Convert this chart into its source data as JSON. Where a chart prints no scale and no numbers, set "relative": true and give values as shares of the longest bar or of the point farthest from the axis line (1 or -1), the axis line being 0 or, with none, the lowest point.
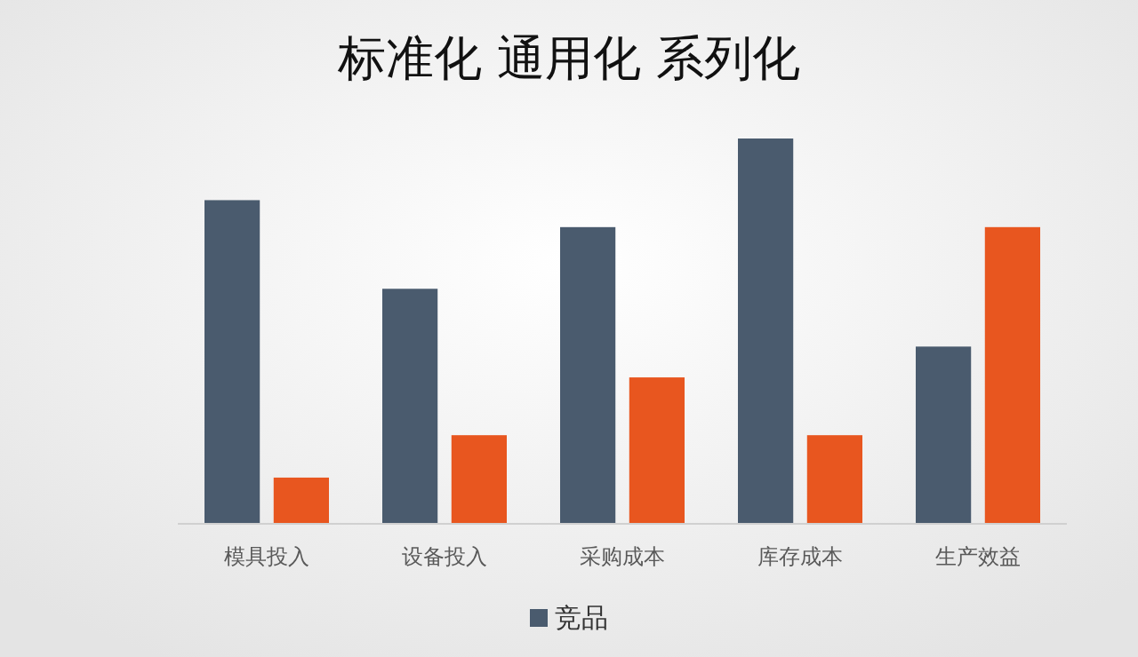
{
  "chart_data": {
    "type": "bar",
    "title": "标准化 通用化 系列化",
    "relative": true,
    "legend": "bottom",
    "categories": [
      "模具投入",
      "设备投入",
      "采购成本",
      "库存成本",
      "生产效益"
    ],
    "series": [
      {
        "name": "竞品",
        "color": "#4a5b6e",
        "values": [
          0.84,
          0.61,
          0.77,
          1,
          0.46
        ]
      },
      {
        "color": "#e8561f",
        "values": [
          0.12,
          0.23,
          0.38,
          0.23,
          0.77
        ]
      }
    ]
  }
}
